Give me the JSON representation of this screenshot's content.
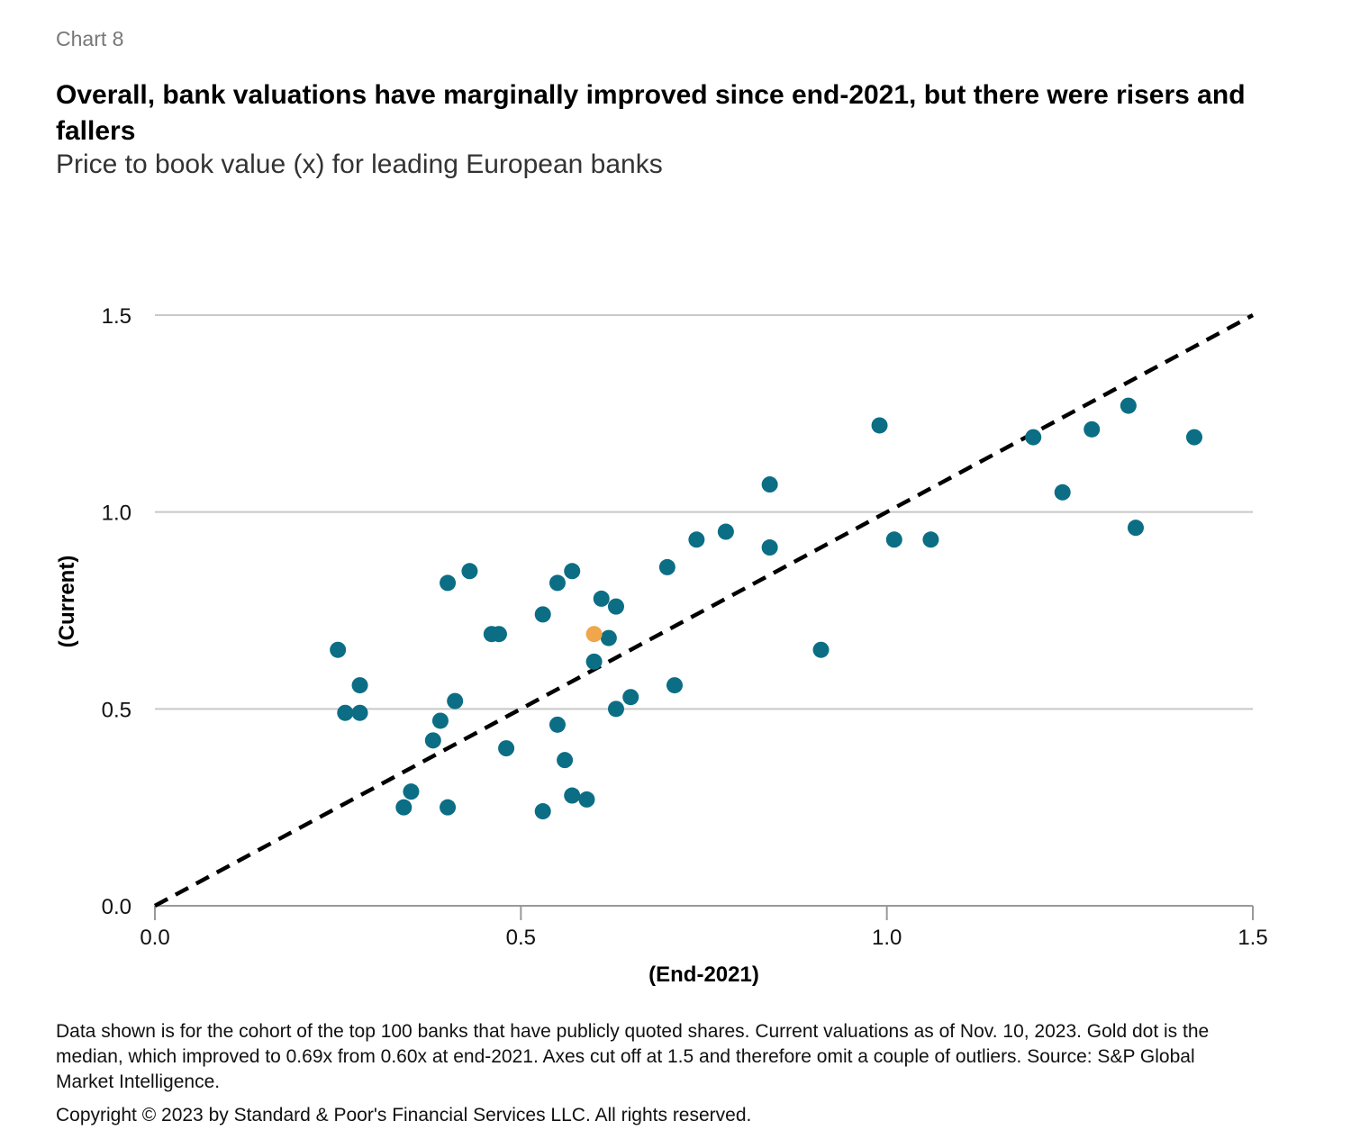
{
  "header": {
    "chart_label": "Chart 8",
    "title": "Overall, bank valuations have marginally improved since end-2021, but there were risers and fallers",
    "subtitle": "Price to book value (x) for leading European banks"
  },
  "footer": {
    "note": "Data shown is for the cohort of the top 100 banks that have publicly quoted shares. Current valuations as of Nov. 10, 2023. Gold dot is the median, which improved to 0.69x from 0.60x at end-2021. Axes cut off at 1.5 and therefore omit a couple of outliers. Source: S&P Global Market Intelligence.",
    "copyright": "Copyright © 2023 by Standard & Poor's Financial Services LLC. All rights reserved."
  },
  "colors": {
    "point": "#0b6e84",
    "median": "#f0a64b",
    "gridline": "#c8c8c8",
    "axis": "#999999",
    "reference_line": "#000000"
  },
  "chart_data": {
    "type": "scatter",
    "xlabel": "(End-2021)",
    "ylabel": "(Current)",
    "xlim": [
      0,
      1.5
    ],
    "ylim": [
      0,
      1.5
    ],
    "x_ticks": [
      0,
      0.5,
      1,
      1.5
    ],
    "y_ticks": [
      0,
      0.5,
      1,
      1.5
    ],
    "x_tick_labels": [
      "0.0",
      "0.5",
      "1.0",
      "1.5"
    ],
    "y_tick_labels": [
      "0.0",
      "0.5",
      "1.0",
      "1.5"
    ],
    "grid": "horizontal",
    "reference_line": {
      "type": "dashed",
      "from": [
        0,
        0
      ],
      "to": [
        1.5,
        1.5
      ]
    },
    "median": {
      "x": 0.6,
      "y": 0.69
    },
    "series": [
      {
        "name": "Banks",
        "points": [
          [
            0.25,
            0.65
          ],
          [
            0.26,
            0.49
          ],
          [
            0.28,
            0.49
          ],
          [
            0.28,
            0.56
          ],
          [
            0.34,
            0.25
          ],
          [
            0.35,
            0.29
          ],
          [
            0.38,
            0.42
          ],
          [
            0.39,
            0.47
          ],
          [
            0.4,
            0.82
          ],
          [
            0.41,
            0.52
          ],
          [
            0.4,
            0.25
          ],
          [
            0.43,
            0.85
          ],
          [
            0.46,
            0.69
          ],
          [
            0.47,
            0.69
          ],
          [
            0.48,
            0.4
          ],
          [
            0.53,
            0.74
          ],
          [
            0.55,
            0.82
          ],
          [
            0.55,
            0.46
          ],
          [
            0.56,
            0.37
          ],
          [
            0.57,
            0.85
          ],
          [
            0.57,
            0.28
          ],
          [
            0.53,
            0.24
          ],
          [
            0.59,
            0.27
          ],
          [
            0.6,
            0.62
          ],
          [
            0.61,
            0.78
          ],
          [
            0.62,
            0.68
          ],
          [
            0.63,
            0.76
          ],
          [
            0.63,
            0.5
          ],
          [
            0.65,
            0.53
          ],
          [
            0.7,
            0.86
          ],
          [
            0.71,
            0.56
          ],
          [
            0.74,
            0.93
          ],
          [
            0.78,
            0.95
          ],
          [
            0.84,
            0.91
          ],
          [
            0.84,
            1.07
          ],
          [
            0.91,
            0.65
          ],
          [
            0.99,
            1.22
          ],
          [
            1.01,
            0.93
          ],
          [
            1.06,
            0.93
          ],
          [
            1.2,
            1.19
          ],
          [
            1.24,
            1.05
          ],
          [
            1.28,
            1.21
          ],
          [
            1.33,
            1.27
          ],
          [
            1.34,
            0.96
          ],
          [
            1.42,
            1.19
          ]
        ]
      }
    ]
  }
}
